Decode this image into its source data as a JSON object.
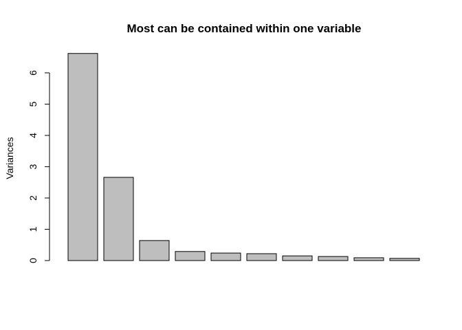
{
  "chart_data": {
    "type": "bar",
    "title": "Most can be contained within one variable",
    "y_label": "Variances",
    "categories": [
      null,
      null,
      null,
      null,
      null,
      null,
      null,
      null,
      null,
      null
    ],
    "values": [
      6.62,
      2.66,
      0.64,
      0.29,
      0.24,
      0.22,
      0.15,
      0.13,
      0.09,
      0.07
    ],
    "color": "#bebebe",
    "ylim": [
      0,
      6.9
    ],
    "yticks": [
      0,
      1,
      2,
      3,
      4,
      5,
      6
    ],
    "grid": false
  }
}
